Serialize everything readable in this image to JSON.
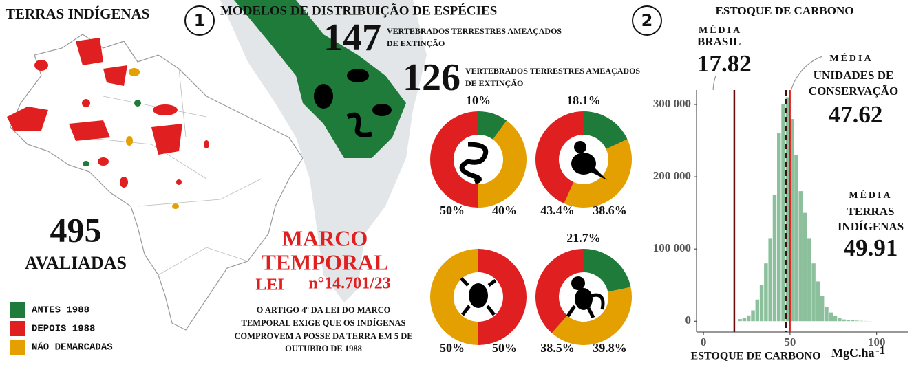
{
  "map": {
    "title": "TERRAS INDÍGENAS",
    "count": "495",
    "count_label": "AVALIADAS",
    "legend": [
      {
        "name": "ANTES 1988",
        "color": "#1e7b3a"
      },
      {
        "name": "DEPOIS 1988",
        "color": "#e02020"
      },
      {
        "name": "NÃO DEMARCADAS",
        "color": "#e3a000"
      }
    ]
  },
  "species": {
    "number_label": "1",
    "title": "MODELOS DE DISTRIBUIÇÃO DE ESPÉCIES",
    "stats": [
      {
        "value": "147",
        "text_lines": [
          "VERTEBRADOS TERRESTRES AMEAÇADOS",
          "DE EXTINÇÃO"
        ]
      },
      {
        "value": "126",
        "text_lines": [
          "VERTEBRADOS TERRESTRES AMEAÇADOS",
          "DE EXTINÇÃO"
        ]
      }
    ]
  },
  "marco": {
    "title_lines": [
      "MARCO",
      "TEMPORAL"
    ],
    "law": "LEI",
    "law_number": "n°14.701/23",
    "text_lines": [
      "O ARTIGO 4º DA LEI DO MARCO",
      "TEMPORAL EXIGE QUE OS INDÍGENAS",
      "COMPROVEM A POSSE DA TERRA EM 5 DE",
      "OUTUBRO DE 1988"
    ]
  },
  "carbon": {
    "number_label": "2",
    "title": "ESTOQUE DE CARBONO"
  },
  "chart_data": [
    {
      "type": "pie",
      "donut": true,
      "values": [
        10,
        40,
        50
      ],
      "value_labels": [
        "10%",
        "40%",
        "50%"
      ],
      "colors": [
        "#1e7b3a",
        "#e3a000",
        "#e02020"
      ]
    },
    {
      "type": "pie",
      "donut": true,
      "values": [
        18.1,
        38.6,
        43.4
      ],
      "value_labels": [
        "18.1%",
        "38.6%",
        "43.4%"
      ],
      "colors": [
        "#1e7b3a",
        "#e3a000",
        "#e02020"
      ]
    },
    {
      "type": "pie",
      "donut": true,
      "values": [
        50,
        50
      ],
      "value_labels": [
        "50%",
        "50%"
      ],
      "colors": [
        "#e02020",
        "#e3a000"
      ]
    },
    {
      "type": "pie",
      "donut": true,
      "values": [
        21.7,
        39.8,
        38.5
      ],
      "value_labels": [
        "21.7%",
        "39.8%",
        "38.5%"
      ],
      "colors": [
        "#1e7b3a",
        "#e3a000",
        "#e02020"
      ]
    },
    {
      "type": "histogram",
      "color": "#8cc09c",
      "bins": [
        20,
        22.5,
        25,
        27.5,
        30,
        32.5,
        35,
        37.5,
        40,
        42.5,
        45,
        47.5,
        50,
        52.5,
        55,
        57.5,
        60,
        62.5,
        65,
        67.5,
        70,
        72.5,
        75,
        77.5,
        80,
        82.5,
        85,
        87.5,
        90,
        92.5,
        95,
        97.5
      ],
      "values": [
        3000,
        5000,
        8000,
        15000,
        30000,
        50000,
        80000,
        115000,
        175000,
        260000,
        300000,
        310000,
        280000,
        230000,
        180000,
        150000,
        115000,
        80000,
        55000,
        35000,
        20000,
        12000,
        7000,
        4000,
        2500,
        1800,
        1200,
        800,
        500,
        300,
        200
      ],
      "xlim": [
        -4,
        118
      ],
      "xticks": [
        0,
        50,
        100
      ],
      "ylim": [
        -15000,
        320000
      ],
      "yticks": [
        0,
        {
          "value": 100000,
          "label": "100 000"
        },
        {
          "value": 200000,
          "label": "200 000"
        },
        {
          "value": 300000,
          "label": "300 000"
        }
      ],
      "x_label": "ESTOQUE DE CARBONO",
      "x_unit": "MgC.ha",
      "x_unit_exponent": "-1",
      "annotations": [
        {
          "label_lines": [
            "MÉDIA",
            "BRASIL"
          ],
          "value": 17.82,
          "color": "#6a0a0a",
          "dash": false
        },
        {
          "label_lines": [
            "MÉDIA",
            "UNIDADES DE",
            "CONSERVAÇÃO"
          ],
          "value": 47.62,
          "color": "#3a1010",
          "dash": true
        },
        {
          "label_lines": [
            "MÉDIA",
            "TERRAS",
            "INDÍGENAS"
          ],
          "value": 49.91,
          "color": "#e02020",
          "dash": false
        }
      ]
    }
  ]
}
